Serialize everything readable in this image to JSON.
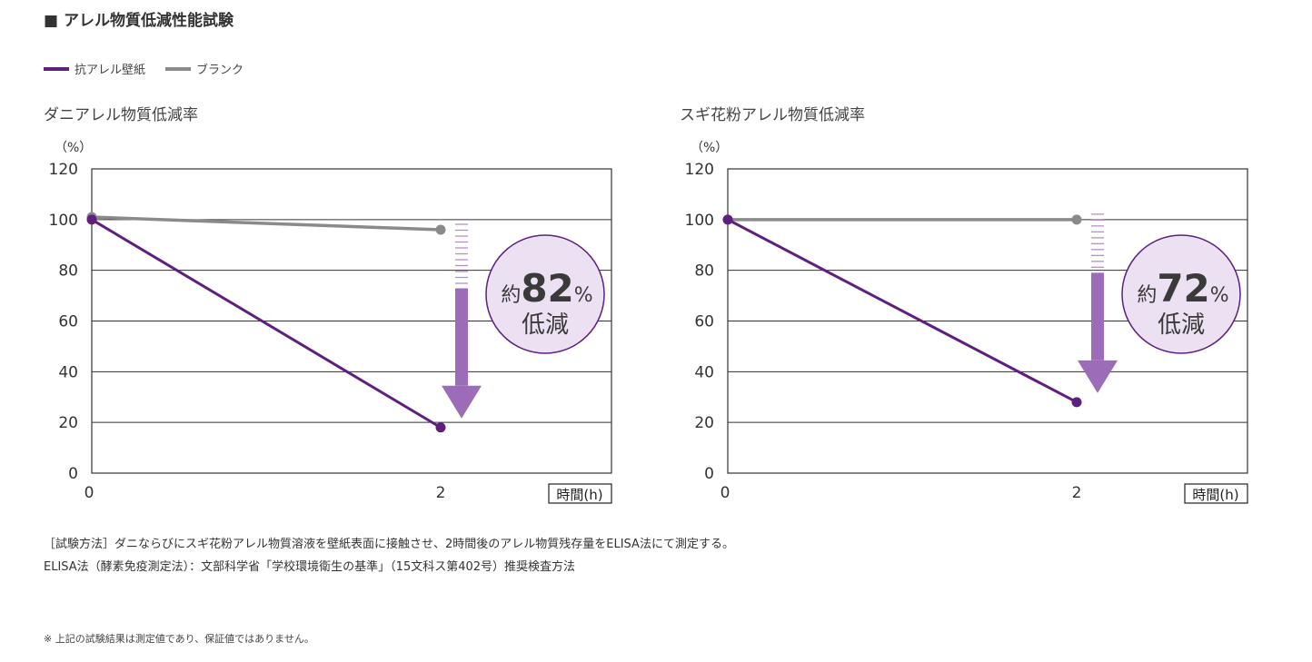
{
  "page": {
    "title": "■ アレル物質低減性能試験",
    "legend": [
      {
        "label": "抗アレル壁紙",
        "color": "#5e1f7f"
      },
      {
        "label": "ブランク",
        "color": "#8a8a8a"
      }
    ],
    "notes": [
      "［試験方法］ダニならびにスギ花粉アレル物質溶液を壁紙表面に接触させ、2時間後のアレル物質残存量をELISA法にて測定する。",
      "ELISA法（酵素免疫測定法）：文部科学省「学校環境衛生の基準」（15文科ス第402号）推奨検査方法"
    ],
    "footnote": "※ 上記の試験結果は測定値であり、保証値ではありません。"
  },
  "chart_data": [
    {
      "type": "line",
      "title": "ダニアレル物質低減率",
      "ylabel": "（%）",
      "xlabel": "時間(h)",
      "ylim": [
        0,
        120
      ],
      "yticks": [
        "0",
        "20",
        "40",
        "60",
        "80",
        "100",
        "120"
      ],
      "x": [
        0,
        2
      ],
      "xticks": [
        "0",
        "2"
      ],
      "grid": true,
      "series": [
        {
          "name": "抗アレル壁紙",
          "values": [
            100,
            18
          ],
          "color": "#5e1f7f"
        },
        {
          "name": "ブランク",
          "values": [
            101,
            96
          ],
          "color": "#8a8a8a"
        }
      ],
      "reduction": {
        "prefix": "約",
        "value": "82",
        "unit": "%",
        "label": "低減"
      }
    },
    {
      "type": "line",
      "title": "スギ花粉アレル物質低減率",
      "ylabel": "（%）",
      "xlabel": "時間(h)",
      "ylim": [
        0,
        120
      ],
      "yticks": [
        "0",
        "20",
        "40",
        "60",
        "80",
        "100",
        "120"
      ],
      "x": [
        0,
        2
      ],
      "xticks": [
        "0",
        "2"
      ],
      "grid": true,
      "series": [
        {
          "name": "抗アレル壁紙",
          "values": [
            100,
            28
          ],
          "color": "#5e1f7f"
        },
        {
          "name": "ブランク",
          "values": [
            100,
            100
          ],
          "color": "#8a8a8a"
        }
      ],
      "reduction": {
        "prefix": "約",
        "value": "72",
        "unit": "%",
        "label": "低減"
      }
    }
  ]
}
